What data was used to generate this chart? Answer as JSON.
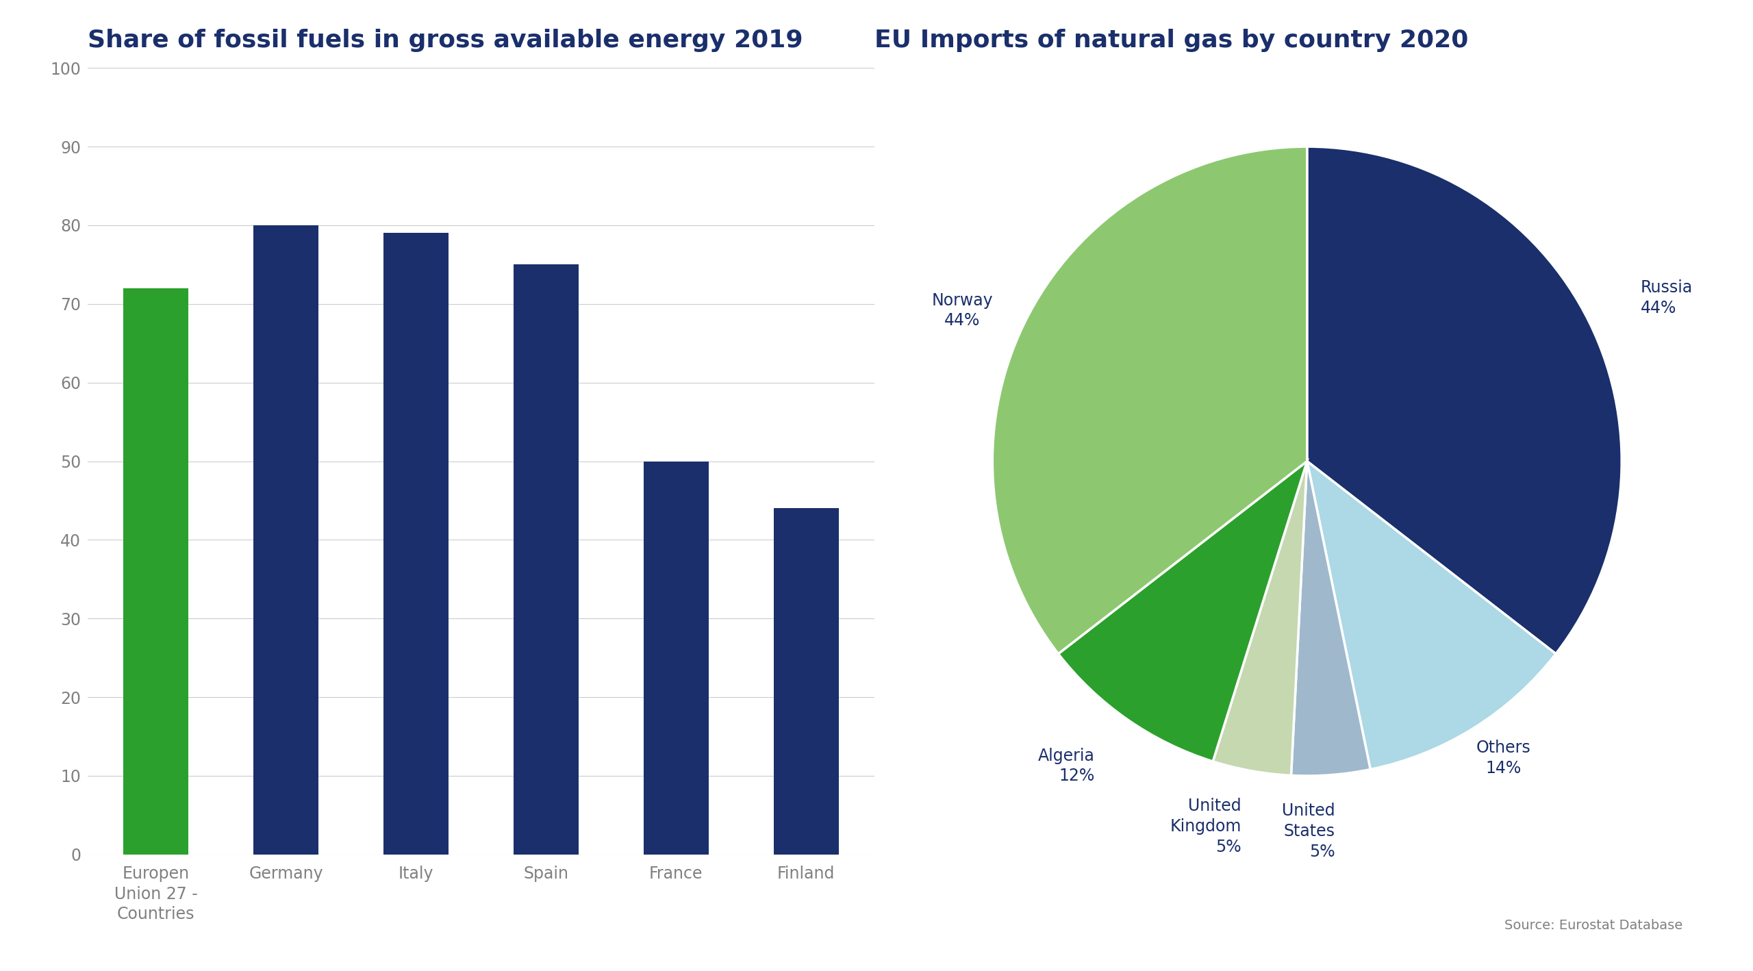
{
  "bar_title": "Share of fossil fuels in gross available energy 2019",
  "bar_categories": [
    "Europen\nUnion 27 -\nCountries",
    "Germany",
    "Italy",
    "Spain",
    "France",
    "Finland"
  ],
  "bar_values": [
    72,
    80,
    79,
    75,
    50,
    44
  ],
  "bar_colors": [
    "#2ca02c",
    "#1a2f6b",
    "#1a2f6b",
    "#1a2f6b",
    "#1a2f6b",
    "#1a2f6b"
  ],
  "bar_ylim": [
    0,
    100
  ],
  "bar_yticks": [
    0,
    10,
    20,
    30,
    40,
    50,
    60,
    70,
    80,
    90,
    100
  ],
  "pie_title": "EU Imports of natural gas by country 2020",
  "pie_values": [
    44,
    14,
    5,
    5,
    12,
    44
  ],
  "pie_colors": [
    "#1a2f6b",
    "#add8e6",
    "#9fb8cc",
    "#c5d8b0",
    "#2ca02c",
    "#8dc870"
  ],
  "pie_labels": [
    "Russia\n44%",
    "Others\n14%",
    "United\nStates\n5%",
    "United\nKingdom\n5%",
    "Algeria\n12%",
    "Norway\n44%"
  ],
  "pie_label_sides": [
    "right",
    "left",
    "left",
    "left",
    "left",
    "bottom"
  ],
  "pie_startangle": 90,
  "source_text": "Source: Eurostat Database",
  "title_color": "#1a2f6b",
  "tick_color": "#808080",
  "bg_color": "#ffffff",
  "grid_color": "#cccccc"
}
